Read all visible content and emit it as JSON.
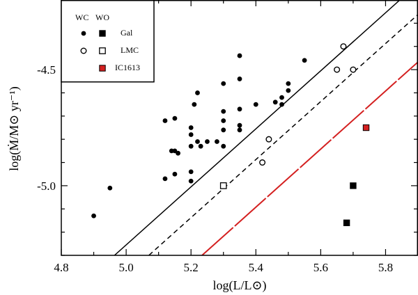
{
  "chart_data": {
    "type": "scatter",
    "xlabel": "log(L/L⊙)",
    "ylabel": "log(Ṁ/M⊙ yr⁻¹)",
    "xlim": [
      4.8,
      5.9
    ],
    "ylim": [
      -5.3,
      -4.2
    ],
    "x_ticks": [
      4.8,
      5.0,
      5.2,
      5.4,
      5.6,
      5.8
    ],
    "x_tick_labels": [
      "4.8",
      "5.0",
      "5.2",
      "5.4",
      "5.6",
      "5.8"
    ],
    "y_ticks": [
      -4.5,
      -5.0
    ],
    "y_tick_labels": [
      "-4.5",
      "-5.0"
    ],
    "legend": {
      "position": "top-left",
      "col_headers": [
        "WC",
        "WO"
      ],
      "entries": [
        {
          "label": "Gal",
          "wc_marker": "filled-circle",
          "wo_marker": "filled-square",
          "color": "#000000"
        },
        {
          "label": "LMC",
          "wc_marker": "open-circle",
          "wo_marker": "open-square",
          "color": "#000000"
        },
        {
          "label": "IC1613",
          "wo_marker": "filled-square",
          "color": "#d42020"
        }
      ]
    },
    "series": [
      {
        "name": "WC Gal",
        "marker": "filled-circle",
        "color": "#000000",
        "points": [
          [
            4.9,
            -5.13
          ],
          [
            4.95,
            -5.01
          ],
          [
            5.12,
            -4.97
          ],
          [
            5.12,
            -4.72
          ],
          [
            5.14,
            -4.85
          ],
          [
            5.15,
            -4.85
          ],
          [
            5.15,
            -4.95
          ],
          [
            5.15,
            -4.71
          ],
          [
            5.16,
            -4.86
          ],
          [
            5.2,
            -4.94
          ],
          [
            5.2,
            -4.98
          ],
          [
            5.2,
            -4.75
          ],
          [
            5.2,
            -4.78
          ],
          [
            5.2,
            -4.83
          ],
          [
            5.21,
            -4.65
          ],
          [
            5.22,
            -4.6
          ],
          [
            5.22,
            -4.81
          ],
          [
            5.23,
            -4.83
          ],
          [
            5.25,
            -4.81
          ],
          [
            5.28,
            -4.81
          ],
          [
            5.3,
            -4.83
          ],
          [
            5.3,
            -4.56
          ],
          [
            5.3,
            -4.68
          ],
          [
            5.3,
            -4.72
          ],
          [
            5.3,
            -4.76
          ],
          [
            5.35,
            -4.44
          ],
          [
            5.35,
            -4.54
          ],
          [
            5.35,
            -4.67
          ],
          [
            5.35,
            -4.74
          ],
          [
            5.35,
            -4.76
          ],
          [
            5.4,
            -4.65
          ],
          [
            5.46,
            -4.64
          ],
          [
            5.48,
            -4.62
          ],
          [
            5.48,
            -4.65
          ],
          [
            5.5,
            -4.56
          ],
          [
            5.5,
            -4.59
          ],
          [
            5.55,
            -4.46
          ]
        ]
      },
      {
        "name": "WC LMC",
        "marker": "open-circle",
        "color": "#000000",
        "points": [
          [
            5.42,
            -4.9
          ],
          [
            5.44,
            -4.8
          ],
          [
            5.65,
            -4.5
          ],
          [
            5.67,
            -4.4
          ],
          [
            5.7,
            -4.5
          ]
        ]
      },
      {
        "name": "WO Gal",
        "marker": "filled-square",
        "color": "#000000",
        "points": [
          [
            5.68,
            -5.16
          ],
          [
            5.7,
            -5.0
          ]
        ]
      },
      {
        "name": "WO LMC",
        "marker": "open-square",
        "color": "#000000",
        "points": [
          [
            5.3,
            -5.0
          ]
        ]
      },
      {
        "name": "WO IC1613",
        "marker": "filled-square",
        "color": "#d42020",
        "points": [
          [
            5.74,
            -4.75
          ]
        ]
      }
    ],
    "lines": [
      {
        "name": "solid-line",
        "style": "solid",
        "color": "#000000",
        "points": [
          [
            4.964,
            -5.3
          ],
          [
            5.844,
            -4.2
          ]
        ]
      },
      {
        "name": "dashed-line",
        "style": "dashed",
        "color": "#000000",
        "points": [
          [
            5.07,
            -5.3
          ],
          [
            5.95,
            -4.2
          ]
        ]
      },
      {
        "name": "red-line",
        "style": "long-dash",
        "color": "#d42020",
        "points": [
          [
            5.234,
            -5.3
          ],
          [
            5.9,
            -4.467
          ]
        ]
      }
    ]
  }
}
